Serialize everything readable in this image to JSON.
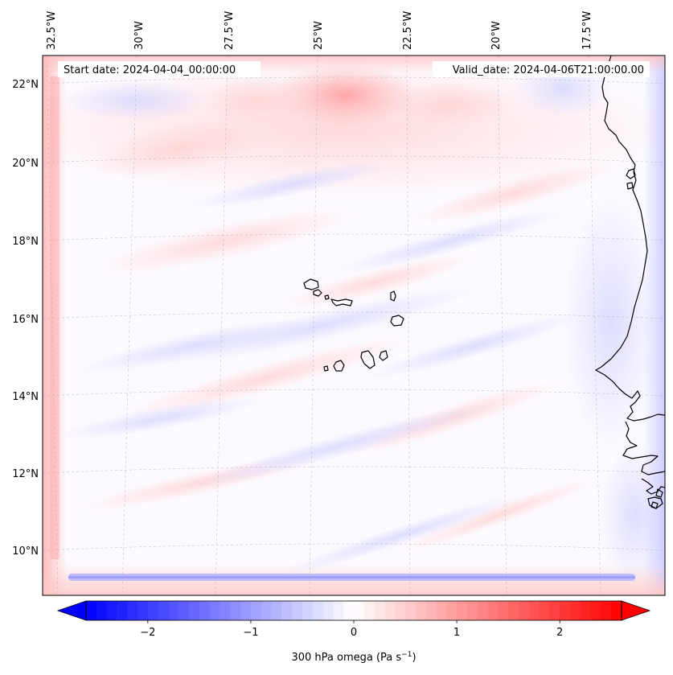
{
  "map": {
    "projection": "lambert-conformal",
    "region": "Cabo Verde and West African coast",
    "field_fill": "diverging blue-white-red shading, near-zero values over most of the domain",
    "lon_labels": [
      "32.5°W",
      "30°W",
      "27.5°W",
      "25°W",
      "22.5°W",
      "20°W",
      "17.5°W"
    ],
    "lat_labels": [
      "22°N",
      "20°N",
      "18°N",
      "16°N",
      "14°N",
      "12°N",
      "10°N"
    ],
    "gridlines": true,
    "coastline_color": "#000000"
  },
  "annotations": {
    "start_date": "Start date: 2024-04-04_00:00:00",
    "valid_date": "Valid_date: 2024-04-06T21:00:00.00"
  },
  "colorbar": {
    "cmap": "bwr",
    "min": -2.6,
    "max": 2.6,
    "extend": "both",
    "ticks": [
      -2,
      -1,
      0,
      1,
      2
    ],
    "tick_labels": [
      "−2",
      "−1",
      "0",
      "1",
      "2"
    ],
    "label_prefix": "300 hPa omega (Pa s",
    "label_exp": "−1",
    "label_suffix": ")",
    "colors": {
      "low": "#0000ff",
      "mid": "#ffffff",
      "high": "#ff0000"
    }
  }
}
